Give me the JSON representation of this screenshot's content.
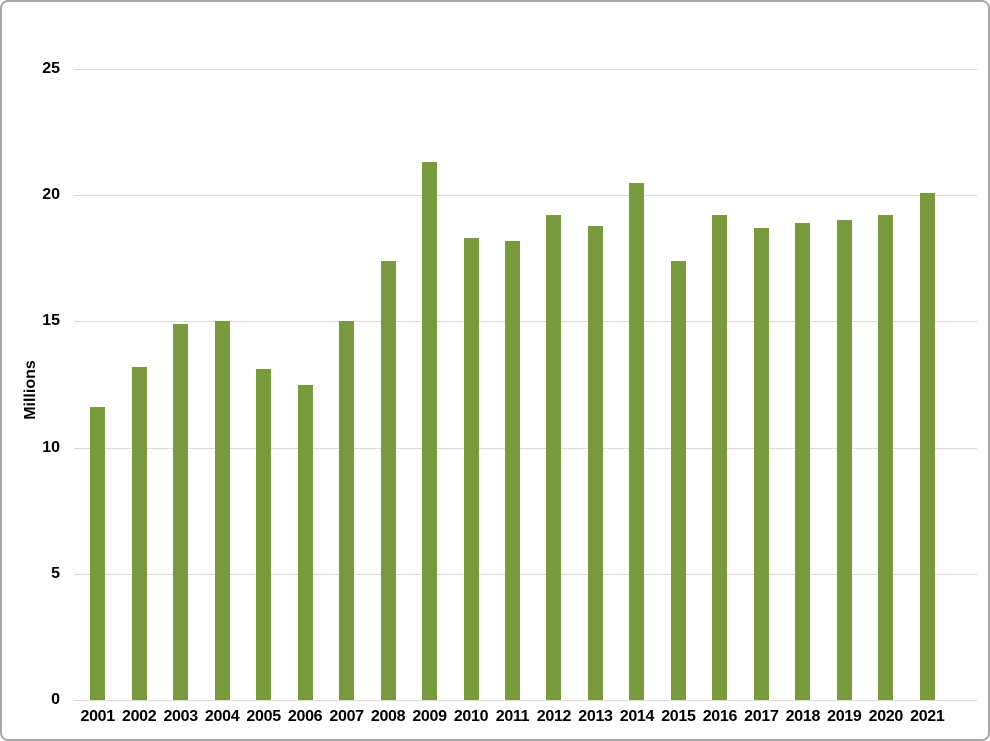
{
  "chart_data": {
    "type": "bar",
    "title": "",
    "xlabel": "",
    "ylabel": "Millions",
    "categories": [
      "2001",
      "2002",
      "2003",
      "2004",
      "2005",
      "2006",
      "2007",
      "2008",
      "2009",
      "2010",
      "2011",
      "2012",
      "2013",
      "2014",
      "2015",
      "2016",
      "2017",
      "2018",
      "2019",
      "2020",
      "2021"
    ],
    "values": [
      11.6,
      13.2,
      14.9,
      15.0,
      13.1,
      12.5,
      15.0,
      17.4,
      21.3,
      18.3,
      18.2,
      19.2,
      18.8,
      20.5,
      17.4,
      19.2,
      18.7,
      18.9,
      19.0,
      19.2,
      20.1
    ],
    "ylim": [
      0,
      25
    ],
    "yticks": [
      0,
      5,
      10,
      15,
      20,
      25
    ],
    "grid": true,
    "legend": false,
    "bar_color": "#7a9a3e",
    "gridline_color": "#d9d9d9",
    "text_color": "#000000",
    "border_color": "#a8a8a8",
    "background": "#ffffff"
  }
}
